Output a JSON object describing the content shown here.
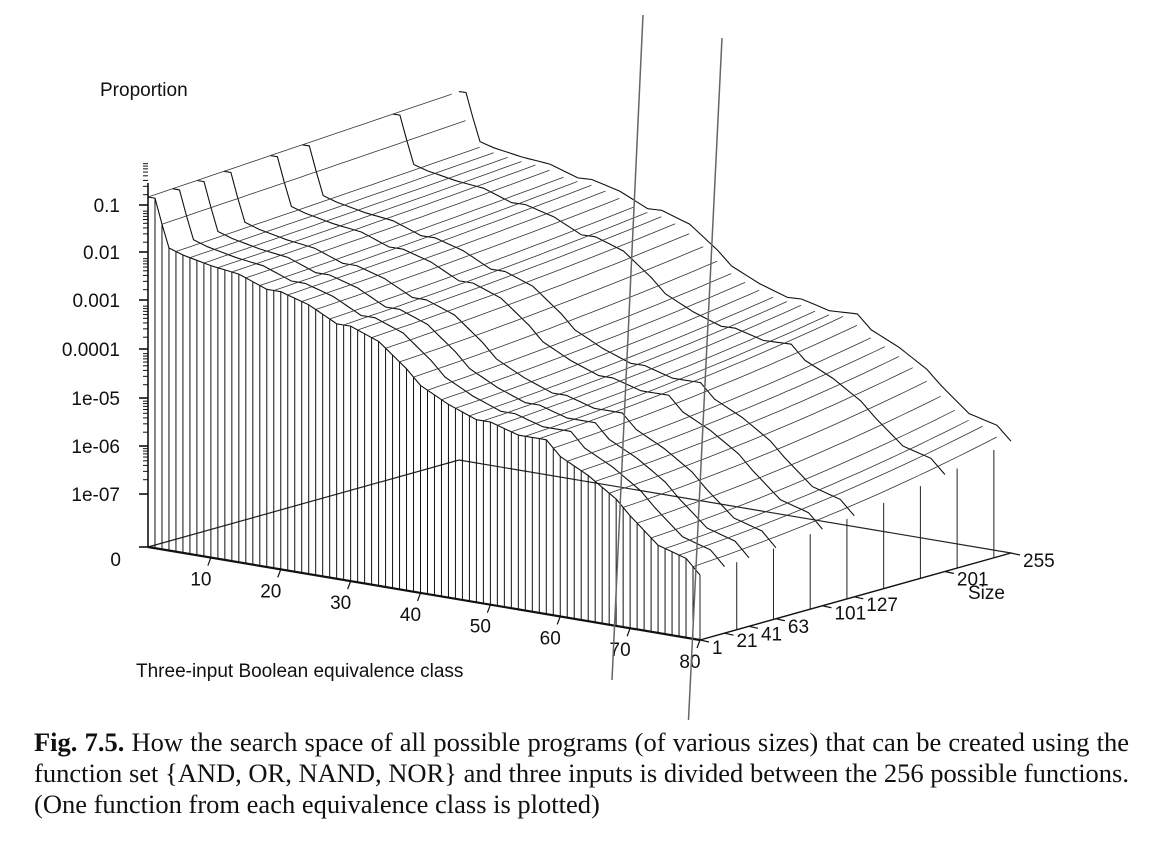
{
  "chart_data": {
    "type": "area",
    "surface": "3d",
    "zlabel": "Proportion",
    "xlabel": "Three-input Boolean equivalence class",
    "ylabel": "Size",
    "zscale": "log",
    "z_ticks": [
      "0.1",
      "0.01",
      "0.001",
      "0.0001",
      "1e-05",
      "1e-06",
      "1e-07",
      "0"
    ],
    "x_ticks": [
      "10",
      "20",
      "30",
      "40",
      "50",
      "60",
      "70",
      "80"
    ],
    "y_ticks": [
      "1",
      "21",
      "41",
      "63",
      "101",
      "127",
      "201",
      "255"
    ],
    "xlim": [
      1,
      80
    ],
    "ylim": [
      1,
      255
    ],
    "front_edge_profile": {
      "x": [
        1,
        2,
        3,
        4,
        6,
        10,
        14,
        18,
        20,
        24,
        28,
        30,
        34,
        38,
        40,
        44,
        48,
        50,
        54,
        58,
        60,
        64,
        68,
        70,
        74,
        78,
        80
      ],
      "z": [
        0.1,
        0.1,
        0.03,
        0.01,
        0.008,
        0.006,
        0.005,
        0.003,
        0.003,
        0.002,
        0.001,
        0.001,
        0.0006,
        0.0002,
        0.0001,
        5e-05,
        3e-05,
        3e-05,
        2e-05,
        2e-05,
        1e-05,
        5e-06,
        2e-06,
        1e-06,
        3e-07,
        2e-07,
        1e-07
      ]
    }
  },
  "caption": {
    "figure_label": "Fig. 7.5.",
    "text": "How the search space of all possible programs (of various sizes) that can be created using the function set {AND, OR, NAND, NOR} and three inputs is divided between the 256 possible functions. (One function from each equivalence class is plotted)"
  }
}
